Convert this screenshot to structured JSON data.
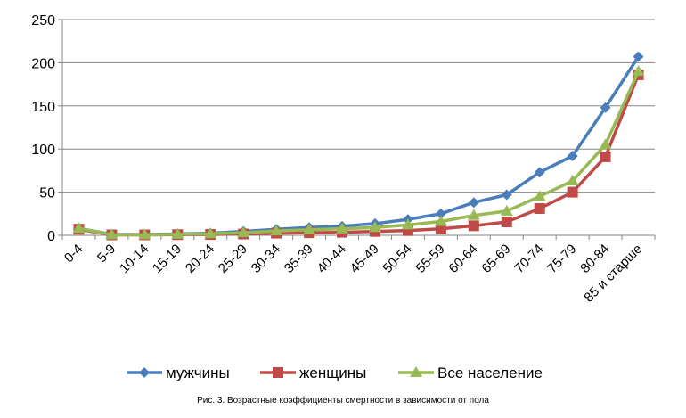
{
  "chart_data": {
    "type": "line",
    "categories": [
      "0-4",
      "5-9",
      "10-14",
      "15-19",
      "20-24",
      "25-29",
      "30-34",
      "35-39",
      "40-44",
      "45-49",
      "50-54",
      "55-59",
      "60-64",
      "65-69",
      "70-74",
      "75-79",
      "80-84",
      "85 и старше"
    ],
    "series": [
      {
        "name": "мужчины",
        "color": "#4a7ebb",
        "marker": "diamond",
        "values": [
          8,
          1,
          1,
          1.5,
          2.5,
          4.5,
          7,
          9,
          10.5,
          13.5,
          18.5,
          25,
          38,
          47,
          73,
          92,
          148,
          207
        ]
      },
      {
        "name": "женщины",
        "color": "#be4b48",
        "marker": "square",
        "values": [
          7,
          0.5,
          0.5,
          0.8,
          1,
          1.5,
          2.5,
          3,
          3.5,
          4.5,
          5.5,
          7.5,
          11,
          15.5,
          31,
          50,
          91,
          186
        ]
      },
      {
        "name": "Все население",
        "color": "#98b954",
        "marker": "triangle",
        "values": [
          8,
          0.7,
          0.7,
          1.2,
          1.8,
          3,
          5,
          6.5,
          7.5,
          9,
          12,
          16,
          23,
          28,
          45,
          63,
          105,
          190
        ]
      }
    ],
    "ylim": [
      0,
      250
    ],
    "yticks": [
      0,
      50,
      100,
      150,
      200,
      250
    ],
    "grid": true,
    "legend": "bottom",
    "caption": "Рис. 3. Возрастные коэффициенты смертности в зависимости от пола"
  }
}
